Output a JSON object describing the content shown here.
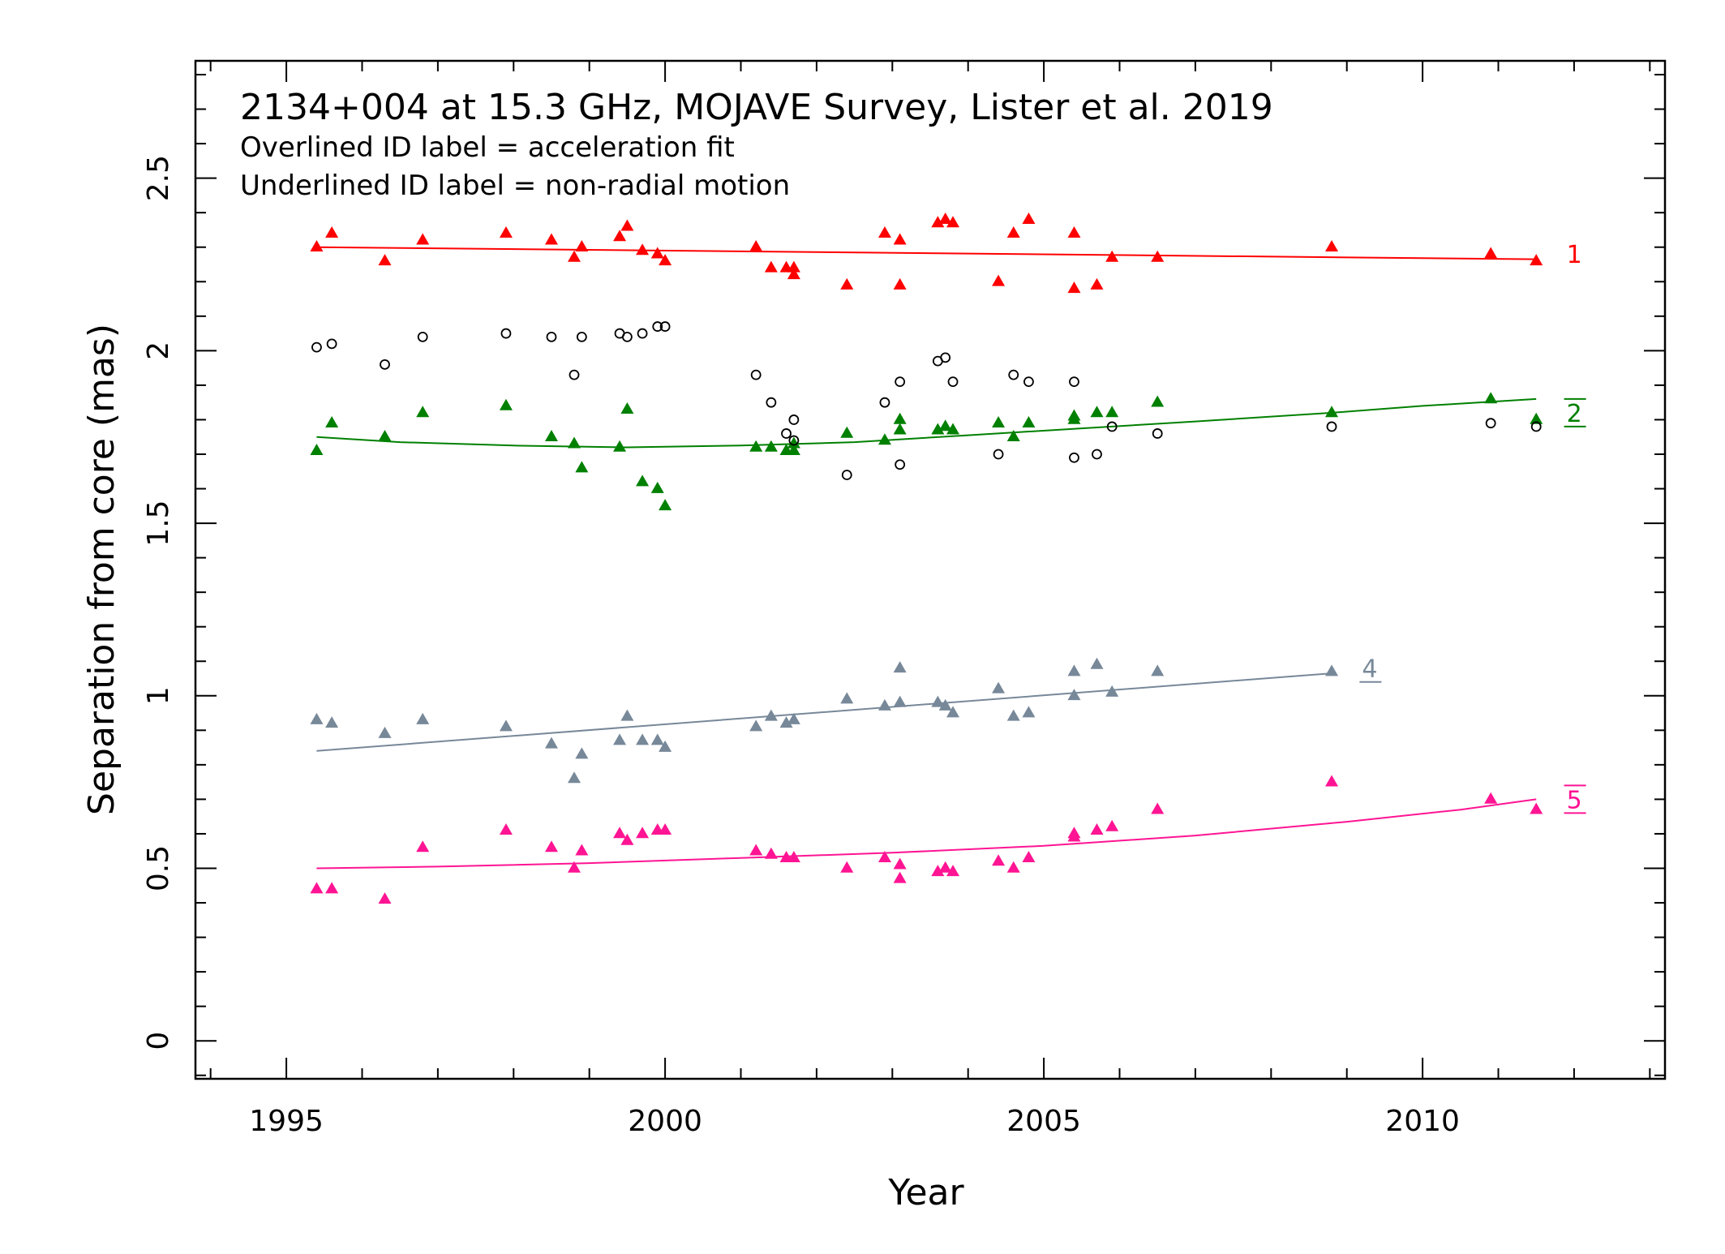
{
  "chart_data": {
    "type": "scatter",
    "title": "2134+004 at 15.3 GHz, MOJAVE Survey, Lister et al. 2019",
    "notes": [
      "Overlined ID label = acceleration fit",
      "Underlined ID label = non-radial motion"
    ],
    "xlabel": "Year",
    "ylabel": "Separation from core (mas)",
    "xlim": [
      1993.8,
      2013.2
    ],
    "ylim": [
      -0.11,
      2.84
    ],
    "x_ticks": [
      1995,
      2000,
      2005,
      2010
    ],
    "x_tick_labels": [
      "1995",
      "2000",
      "2005",
      "2010"
    ],
    "y_ticks": [
      0,
      0.5,
      1,
      1.5,
      2,
      2.5
    ],
    "y_tick_labels": [
      "0",
      "0.5",
      "1",
      "1.5",
      "2",
      "2.5"
    ],
    "x_minor_step": 1,
    "y_minor_step": 0.1,
    "grid": false,
    "series": [
      {
        "name": "1",
        "label_decoration": "none",
        "color": "#ff0000",
        "marker": "triangle",
        "points": [
          [
            1995.4,
            2.3
          ],
          [
            1995.6,
            2.34
          ],
          [
            1996.3,
            2.26
          ],
          [
            1996.8,
            2.32
          ],
          [
            1997.9,
            2.34
          ],
          [
            1998.5,
            2.32
          ],
          [
            1998.8,
            2.27
          ],
          [
            1998.9,
            2.3
          ],
          [
            1999.4,
            2.33
          ],
          [
            1999.5,
            2.36
          ],
          [
            1999.7,
            2.29
          ],
          [
            1999.9,
            2.28
          ],
          [
            2000.0,
            2.26
          ],
          [
            2001.2,
            2.3
          ],
          [
            2001.4,
            2.24
          ],
          [
            2001.6,
            2.24
          ],
          [
            2001.7,
            2.24
          ],
          [
            2001.7,
            2.22
          ],
          [
            2002.4,
            2.19
          ],
          [
            2002.9,
            2.34
          ],
          [
            2003.1,
            2.19
          ],
          [
            2003.1,
            2.32
          ],
          [
            2003.6,
            2.37
          ],
          [
            2003.7,
            2.38
          ],
          [
            2003.8,
            2.37
          ],
          [
            2004.4,
            2.2
          ],
          [
            2004.6,
            2.34
          ],
          [
            2004.8,
            2.38
          ],
          [
            2005.4,
            2.18
          ],
          [
            2005.4,
            2.34
          ],
          [
            2005.7,
            2.19
          ],
          [
            2005.9,
            2.27
          ],
          [
            2006.5,
            2.27
          ],
          [
            2008.8,
            2.3
          ],
          [
            2010.9,
            2.28
          ],
          [
            2011.5,
            2.26
          ]
        ],
        "fit": [
          [
            1995.4,
            2.3
          ],
          [
            2011.5,
            2.265
          ]
        ],
        "label_pos": [
          2011.9,
          2.28
        ]
      },
      {
        "name": "2",
        "label_decoration": "overline",
        "color": "#008000",
        "marker": "triangle",
        "points": [
          [
            1995.4,
            1.71
          ],
          [
            1995.6,
            1.79
          ],
          [
            1996.3,
            1.75
          ],
          [
            1996.8,
            1.82
          ],
          [
            1997.9,
            1.84
          ],
          [
            1998.5,
            1.75
          ],
          [
            1998.8,
            1.73
          ],
          [
            1998.9,
            1.66
          ],
          [
            1999.4,
            1.72
          ],
          [
            1999.5,
            1.83
          ],
          [
            1999.7,
            1.62
          ],
          [
            1999.9,
            1.6
          ],
          [
            2000.0,
            1.55
          ],
          [
            2001.2,
            1.72
          ],
          [
            2001.4,
            1.72
          ],
          [
            2001.6,
            1.71
          ],
          [
            2001.7,
            1.73
          ],
          [
            2001.7,
            1.71
          ],
          [
            2002.4,
            1.76
          ],
          [
            2002.9,
            1.74
          ],
          [
            2003.1,
            1.8
          ],
          [
            2003.1,
            1.77
          ],
          [
            2003.6,
            1.77
          ],
          [
            2003.7,
            1.78
          ],
          [
            2003.8,
            1.77
          ],
          [
            2004.4,
            1.79
          ],
          [
            2004.6,
            1.75
          ],
          [
            2004.8,
            1.79
          ],
          [
            2005.4,
            1.81
          ],
          [
            2005.4,
            1.8
          ],
          [
            2005.7,
            1.82
          ],
          [
            2005.9,
            1.82
          ],
          [
            2006.5,
            1.85
          ],
          [
            2008.8,
            1.82
          ],
          [
            2010.9,
            1.86
          ],
          [
            2011.5,
            1.8
          ]
        ],
        "fit": [
          [
            1995.4,
            1.75
          ],
          [
            1996.5,
            1.735
          ],
          [
            1998.0,
            1.725
          ],
          [
            1999.5,
            1.72
          ],
          [
            2001.0,
            1.725
          ],
          [
            2002.5,
            1.735
          ],
          [
            2004.0,
            1.755
          ],
          [
            2005.5,
            1.775
          ],
          [
            2007.0,
            1.795
          ],
          [
            2008.8,
            1.82
          ],
          [
            2010.0,
            1.84
          ],
          [
            2011.5,
            1.86
          ]
        ],
        "label_pos": [
          2011.9,
          1.82
        ]
      },
      {
        "name": "4",
        "label_decoration": "underline",
        "color": "#778899",
        "marker": "triangle",
        "points": [
          [
            1995.4,
            0.93
          ],
          [
            1995.6,
            0.92
          ],
          [
            1996.3,
            0.89
          ],
          [
            1996.8,
            0.93
          ],
          [
            1997.9,
            0.91
          ],
          [
            1998.5,
            0.86
          ],
          [
            1998.8,
            0.76
          ],
          [
            1998.9,
            0.83
          ],
          [
            1999.4,
            0.87
          ],
          [
            1999.5,
            0.94
          ],
          [
            1999.7,
            0.87
          ],
          [
            1999.9,
            0.87
          ],
          [
            2000.0,
            0.85
          ],
          [
            2001.2,
            0.91
          ],
          [
            2001.4,
            0.94
          ],
          [
            2001.6,
            0.92
          ],
          [
            2001.7,
            0.93
          ],
          [
            2002.4,
            0.99
          ],
          [
            2002.9,
            0.97
          ],
          [
            2003.1,
            1.08
          ],
          [
            2003.1,
            0.98
          ],
          [
            2003.6,
            0.98
          ],
          [
            2003.7,
            0.97
          ],
          [
            2003.8,
            0.95
          ],
          [
            2004.4,
            1.02
          ],
          [
            2004.6,
            0.94
          ],
          [
            2004.8,
            0.95
          ],
          [
            2005.4,
            1.07
          ],
          [
            2005.4,
            1.0
          ],
          [
            2005.7,
            1.09
          ],
          [
            2005.9,
            1.01
          ],
          [
            2006.5,
            1.07
          ],
          [
            2008.8,
            1.07
          ]
        ],
        "fit": [
          [
            1995.4,
            0.84
          ],
          [
            2008.8,
            1.065
          ]
        ],
        "label_pos": [
          2009.2,
          1.08
        ]
      },
      {
        "name": "5",
        "label_decoration": "overline",
        "color": "#ff1493",
        "marker": "triangle",
        "points": [
          [
            1995.4,
            0.44
          ],
          [
            1995.6,
            0.44
          ],
          [
            1996.3,
            0.41
          ],
          [
            1996.8,
            0.56
          ],
          [
            1997.9,
            0.61
          ],
          [
            1998.5,
            0.56
          ],
          [
            1998.8,
            0.5
          ],
          [
            1998.9,
            0.55
          ],
          [
            1999.4,
            0.6
          ],
          [
            1999.5,
            0.58
          ],
          [
            1999.7,
            0.6
          ],
          [
            1999.9,
            0.61
          ],
          [
            2000.0,
            0.61
          ],
          [
            2001.2,
            0.55
          ],
          [
            2001.4,
            0.54
          ],
          [
            2001.6,
            0.53
          ],
          [
            2001.7,
            0.53
          ],
          [
            2002.4,
            0.5
          ],
          [
            2002.9,
            0.53
          ],
          [
            2003.1,
            0.51
          ],
          [
            2003.1,
            0.47
          ],
          [
            2003.6,
            0.49
          ],
          [
            2003.7,
            0.5
          ],
          [
            2003.8,
            0.49
          ],
          [
            2004.4,
            0.52
          ],
          [
            2004.6,
            0.5
          ],
          [
            2004.8,
            0.53
          ],
          [
            2005.4,
            0.59
          ],
          [
            2005.4,
            0.6
          ],
          [
            2005.7,
            0.61
          ],
          [
            2005.9,
            0.62
          ],
          [
            2006.5,
            0.67
          ],
          [
            2008.8,
            0.75
          ],
          [
            2010.9,
            0.7
          ],
          [
            2011.5,
            0.67
          ]
        ],
        "fit": [
          [
            1995.4,
            0.5
          ],
          [
            1997.0,
            0.505
          ],
          [
            1999.0,
            0.515
          ],
          [
            2001.0,
            0.53
          ],
          [
            2003.0,
            0.545
          ],
          [
            2005.0,
            0.565
          ],
          [
            2007.0,
            0.595
          ],
          [
            2009.0,
            0.635
          ],
          [
            2010.5,
            0.67
          ],
          [
            2011.5,
            0.7
          ]
        ],
        "label_pos": [
          2011.9,
          0.7
        ]
      },
      {
        "name": "",
        "color": "#000000",
        "marker": "open-circle",
        "points": [
          [
            1995.4,
            2.01
          ],
          [
            1995.6,
            2.02
          ],
          [
            1996.3,
            1.96
          ],
          [
            1996.8,
            2.04
          ],
          [
            1997.9,
            2.05
          ],
          [
            1998.5,
            2.04
          ],
          [
            1998.8,
            1.93
          ],
          [
            1998.9,
            2.04
          ],
          [
            1999.4,
            2.05
          ],
          [
            1999.5,
            2.04
          ],
          [
            1999.7,
            2.05
          ],
          [
            1999.9,
            2.07
          ],
          [
            2000.0,
            2.07
          ],
          [
            2001.2,
            1.93
          ],
          [
            2001.4,
            1.85
          ],
          [
            2001.6,
            1.76
          ],
          [
            2001.7,
            1.8
          ],
          [
            2001.7,
            1.74
          ],
          [
            2002.4,
            1.64
          ],
          [
            2002.9,
            1.85
          ],
          [
            2003.1,
            1.91
          ],
          [
            2003.1,
            1.67
          ],
          [
            2003.6,
            1.97
          ],
          [
            2003.7,
            1.98
          ],
          [
            2003.8,
            1.91
          ],
          [
            2004.4,
            1.7
          ],
          [
            2004.6,
            1.93
          ],
          [
            2004.8,
            1.91
          ],
          [
            2005.4,
            1.91
          ],
          [
            2005.4,
            1.69
          ],
          [
            2005.7,
            1.7
          ],
          [
            2005.9,
            1.78
          ],
          [
            2006.5,
            1.76
          ],
          [
            2008.8,
            1.78
          ],
          [
            2010.9,
            1.79
          ],
          [
            2011.5,
            1.78
          ]
        ]
      }
    ]
  }
}
